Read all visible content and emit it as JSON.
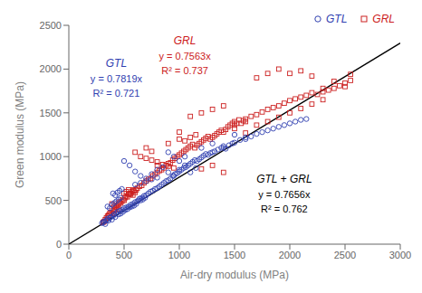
{
  "chart_data": {
    "type": "scatter",
    "xlabel": "Air-dry modulus (MPa)",
    "ylabel": "Green modulus (MPa)",
    "xlim": [
      0,
      3000
    ],
    "ylim": [
      0,
      2500
    ],
    "xticks": [
      0,
      500,
      1000,
      1500,
      2000,
      2500,
      3000
    ],
    "yticks": [
      0,
      500,
      1000,
      1500,
      2000,
      2500
    ],
    "grid": false,
    "legend": "upper right",
    "series": [
      {
        "name": "GTL",
        "type": "scatter",
        "color": "#3040b0",
        "marker": "circle",
        "x": [
          300,
          310,
          320,
          330,
          340,
          350,
          360,
          370,
          380,
          390,
          400,
          410,
          420,
          430,
          440,
          450,
          460,
          470,
          480,
          490,
          500,
          510,
          520,
          530,
          540,
          550,
          560,
          570,
          580,
          590,
          600,
          610,
          620,
          630,
          640,
          650,
          660,
          670,
          680,
          690,
          700,
          720,
          740,
          760,
          780,
          800,
          820,
          840,
          860,
          880,
          900,
          920,
          940,
          960,
          980,
          1000,
          1020,
          1040,
          1060,
          1080,
          1100,
          1120,
          1140,
          1160,
          1180,
          1200,
          1220,
          1240,
          1260,
          1280,
          1300,
          1320,
          1350,
          1380,
          1400,
          1420,
          1450,
          1480,
          1500,
          1550,
          1600,
          1650,
          1700,
          1750,
          1800,
          1850,
          1900,
          1950,
          2000,
          2050,
          2100,
          2150,
          500,
          550,
          600,
          650,
          700,
          750,
          800,
          850,
          900,
          950,
          1000,
          1050,
          1100,
          1150,
          400,
          420,
          440,
          460,
          480,
          350,
          370,
          390,
          410,
          430,
          450,
          470,
          1200,
          1300,
          1400,
          1500,
          1600,
          600,
          650,
          700,
          750,
          800,
          900,
          950,
          1000,
          1050
        ],
        "values": [
          240,
          250,
          260,
          230,
          270,
          290,
          270,
          300,
          310,
          280,
          320,
          340,
          310,
          350,
          370,
          340,
          380,
          350,
          390,
          370,
          410,
          390,
          420,
          400,
          430,
          420,
          450,
          430,
          460,
          440,
          480,
          460,
          490,
          500,
          520,
          500,
          530,
          510,
          550,
          530,
          560,
          580,
          600,
          610,
          630,
          640,
          660,
          680,
          700,
          720,
          730,
          750,
          780,
          800,
          810,
          830,
          850,
          870,
          880,
          900,
          920,
          940,
          960,
          950,
          970,
          990,
          1010,
          1030,
          1020,
          1040,
          1050,
          1060,
          1080,
          1100,
          1120,
          1090,
          1130,
          1150,
          1160,
          1190,
          1220,
          1230,
          1260,
          1280,
          1300,
          1320,
          1340,
          1360,
          1380,
          1400,
          1420,
          1430,
          950,
          900,
          830,
          780,
          750,
          800,
          850,
          880,
          820,
          780,
          850,
          900,
          820,
          870,
          580,
          560,
          590,
          610,
          630,
          430,
          410,
          450,
          470,
          490,
          510,
          530,
          1100,
          1150,
          1100,
          1250,
          1200,
          680,
          700,
          720,
          740,
          760,
          1050,
          1000,
          950,
          1000
        ]
      },
      {
        "name": "GRL",
        "type": "scatter",
        "color": "#cc2020",
        "marker": "square",
        "x": [
          310,
          320,
          330,
          340,
          350,
          360,
          370,
          380,
          390,
          400,
          410,
          420,
          430,
          440,
          450,
          460,
          470,
          480,
          490,
          500,
          510,
          520,
          530,
          540,
          550,
          560,
          570,
          580,
          590,
          600,
          610,
          620,
          640,
          660,
          680,
          700,
          720,
          740,
          760,
          780,
          800,
          820,
          840,
          860,
          880,
          900,
          920,
          940,
          960,
          980,
          1000,
          1020,
          1040,
          1060,
          1080,
          1100,
          1120,
          1140,
          1160,
          1180,
          1200,
          1220,
          1240,
          1260,
          1280,
          1300,
          1320,
          1340,
          1360,
          1380,
          1400,
          1420,
          1440,
          1460,
          1480,
          1500,
          1520,
          1540,
          1560,
          1580,
          1600,
          1650,
          1700,
          1750,
          1800,
          1850,
          1900,
          1950,
          2000,
          2050,
          2100,
          2150,
          2200,
          2250,
          2300,
          2350,
          2400,
          2450,
          2500,
          2550,
          600,
          650,
          700,
          750,
          800,
          850,
          900,
          950,
          1000,
          1050,
          1100,
          1150,
          500,
          520,
          540,
          560,
          580,
          450,
          430,
          410,
          390,
          1200,
          1300,
          1400,
          1500,
          1600,
          1700,
          1800,
          1900,
          2000,
          2100,
          2200,
          2300,
          1100,
          1200,
          1300,
          1400,
          1500,
          1600,
          700,
          750,
          800,
          900,
          1000,
          1700,
          1800,
          1900,
          2000,
          2100,
          2200,
          2300,
          2400,
          2500,
          2550
        ],
        "values": [
          250,
          260,
          280,
          300,
          320,
          330,
          350,
          360,
          380,
          350,
          380,
          400,
          420,
          440,
          460,
          480,
          470,
          490,
          510,
          500,
          530,
          550,
          540,
          570,
          580,
          570,
          600,
          620,
          610,
          590,
          620,
          640,
          660,
          670,
          700,
          720,
          740,
          750,
          780,
          800,
          820,
          840,
          850,
          870,
          900,
          920,
          930,
          960,
          980,
          1000,
          1020,
          1040,
          1060,
          1080,
          1100,
          1120,
          1140,
          1100,
          1130,
          1150,
          1170,
          1190,
          1210,
          1230,
          1200,
          1220,
          1240,
          1260,
          1280,
          1300,
          1280,
          1310,
          1340,
          1360,
          1380,
          1400,
          1380,
          1420,
          1380,
          1410,
          1430,
          1460,
          1480,
          1510,
          1540,
          1560,
          1580,
          1610,
          1640,
          1660,
          1680,
          1700,
          1730,
          1710,
          1740,
          1760,
          1780,
          1810,
          1840,
          1870,
          1050,
          1000,
          980,
          960,
          940,
          910,
          890,
          870,
          1200,
          1180,
          1220,
          1250,
          580,
          600,
          620,
          580,
          560,
          400,
          420,
          440,
          460,
          860,
          900,
          820,
          1320,
          1270,
          1360,
          1400,
          1450,
          1500,
          1550,
          1600,
          1650,
          1460,
          1500,
          1540,
          1580,
          1360,
          1400,
          1100,
          1060,
          900,
          1150,
          1280,
          1900,
          1950,
          2000,
          1950,
          1980,
          1920,
          1780,
          1860,
          1800,
          1940
        ]
      },
      {
        "type": "line",
        "color": "#000000",
        "line_style": "solid",
        "x": [
          0,
          3000
        ],
        "values": [
          0,
          2296.8
        ]
      }
    ],
    "annotations": [
      {
        "text": "GTL",
        "color": "#3040b0"
      },
      {
        "text": "y = 0.7819x",
        "color": "#3040b0"
      },
      {
        "text": "R² = 0.721",
        "color": "#3040b0"
      },
      {
        "text": "GRL",
        "color": "#cc2020"
      },
      {
        "text": "y = 0.7563x",
        "color": "#cc2020"
      },
      {
        "text": "R² = 0.737",
        "color": "#cc2020"
      },
      {
        "text": "GTL + GRL",
        "color": "#000000"
      },
      {
        "text": "y = 0.7656x",
        "color": "#000000"
      },
      {
        "text": "R² = 0.762",
        "color": "#000000"
      }
    ]
  }
}
